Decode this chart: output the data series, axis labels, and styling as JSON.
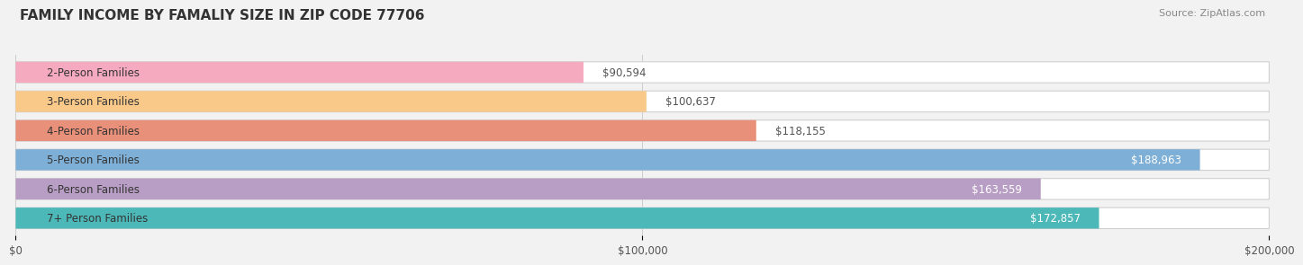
{
  "title": "FAMILY INCOME BY FAMALIY SIZE IN ZIP CODE 77706",
  "source": "Source: ZipAtlas.com",
  "categories": [
    "2-Person Families",
    "3-Person Families",
    "4-Person Families",
    "5-Person Families",
    "6-Person Families",
    "7+ Person Families"
  ],
  "values": [
    90594,
    100637,
    118155,
    188963,
    163559,
    172857
  ],
  "labels": [
    "$90,594",
    "$100,637",
    "$118,155",
    "$188,963",
    "$163,559",
    "$172,857"
  ],
  "bar_colors": [
    "#f5aabf",
    "#f9c98a",
    "#e8907a",
    "#7eafd6",
    "#b89ec4",
    "#4db8b8"
  ],
  "label_inside": [
    false,
    false,
    false,
    true,
    true,
    true
  ],
  "background_color": "#f2f2f2",
  "xlim": [
    0,
    200000
  ],
  "xticks": [
    0,
    100000,
    200000
  ],
  "xticklabels": [
    "$0",
    "$100,000",
    "$200,000"
  ],
  "bar_height": 0.72,
  "title_fontsize": 11,
  "label_fontsize": 8.5,
  "category_fontsize": 8.5,
  "tick_fontsize": 8.5,
  "source_fontsize": 8
}
